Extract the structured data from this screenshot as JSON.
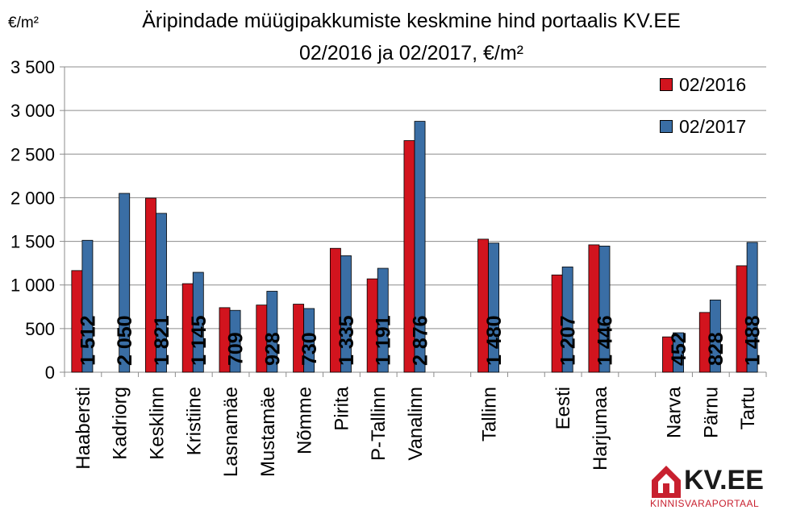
{
  "chart_data": {
    "type": "bar",
    "title": "Äripindade müügipakkumiste keskmine hind portaalis KV.EE",
    "subtitle": "02/2016 ja 02/2017, €/m²",
    "unit_label": "€/m²",
    "ylim": [
      0,
      3500
    ],
    "yticks": [
      0,
      500,
      1000,
      1500,
      2000,
      2500,
      3000,
      3500
    ],
    "ytick_labels": [
      "0",
      "500",
      "1 000",
      "1 500",
      "2 000",
      "2 500",
      "3 000",
      "3 500"
    ],
    "grid": true,
    "legend_position": "top-right",
    "categories": [
      "Haabersti",
      "Kadriorg",
      "Kesklinn",
      "Kristiine",
      "Lasnamäe",
      "Mustamäe",
      "Nõmme",
      "Pirita",
      "P-Tallinn",
      "Vanalinn",
      "",
      "Tallinn",
      "",
      "Eesti",
      "Harjumaa",
      "",
      "Narva",
      "Pärnu",
      "Tartu"
    ],
    "series": [
      {
        "name": "02/2016",
        "color": "#d2141e",
        "values": [
          1165,
          null,
          1995,
          1015,
          740,
          770,
          780,
          1420,
          1070,
          2655,
          null,
          1525,
          null,
          1115,
          1460,
          null,
          405,
          685,
          1220
        ]
      },
      {
        "name": "02/2017",
        "color": "#3a6ea5",
        "values": [
          1512,
          2050,
          1821,
          1145,
          709,
          928,
          730,
          1335,
          1191,
          2876,
          null,
          1480,
          null,
          1207,
          1446,
          null,
          452,
          828,
          1488
        ]
      }
    ],
    "data_labels": [
      "1 512",
      "2 050",
      "1 821",
      "1 145",
      "709",
      "928",
      "730",
      "1 335",
      "1 191",
      "2 876",
      "",
      "1 480",
      "",
      "1 207",
      "1 446",
      "",
      "452",
      "828",
      "1 488"
    ]
  },
  "logo": {
    "text": "KV.EE",
    "subtitle": "KINNISVARAPORTAAL",
    "house_color": "#c8202f"
  }
}
